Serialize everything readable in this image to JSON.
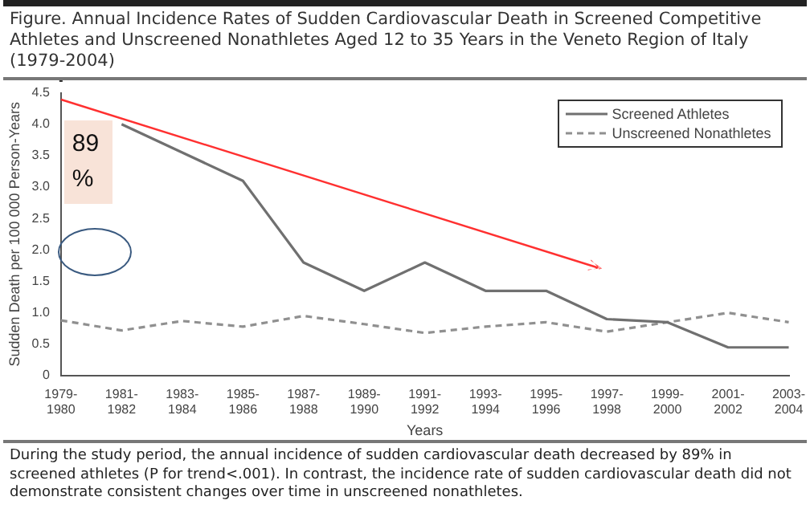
{
  "chart_data": {
    "type": "line",
    "title": "Figure. Annual Incidence Rates of Sudden Cardiovascular Death in Screened Competitive Athletes and Unscreened Nonathletes Aged 12 to 35 Years in the Veneto Region of Italy (1979-2004)",
    "xlabel": "Years",
    "ylabel": "Sudden Death per 100 000 Person-Years",
    "categories": [
      "1979-1980",
      "1981-1982",
      "1983-1984",
      "1985-1986",
      "1987-1988",
      "1989-1990",
      "1991-1992",
      "1993-1994",
      "1995-1996",
      "1997-1998",
      "1999-2000",
      "2001-2002",
      "2003-2004"
    ],
    "series": [
      {
        "name": "Screened Athletes",
        "color": "#707070",
        "line_style": "solid",
        "values": [
          null,
          4.0,
          3.55,
          3.1,
          1.8,
          1.35,
          1.8,
          1.35,
          1.35,
          0.9,
          0.85,
          0.45,
          0.45
        ]
      },
      {
        "name": "Unscreened Nonathletes",
        "color": "#909090",
        "line_style": "dashed",
        "values": [
          0.88,
          0.72,
          0.87,
          0.78,
          0.95,
          0.82,
          0.68,
          0.78,
          0.85,
          0.7,
          0.85,
          1.0,
          0.85
        ]
      }
    ],
    "ylim": [
      0,
      4.5
    ],
    "yticks": [
      0,
      {
        "value": 0.5,
        "label": "0.5"
      },
      {
        "value": 1,
        "label": "1.0"
      },
      {
        "value": 1.5,
        "label": "1.5"
      },
      {
        "value": 2,
        "label": "2.0"
      },
      {
        "value": 2.5,
        "label": "2.5"
      },
      {
        "value": 3,
        "label": "3.0"
      },
      {
        "value": 3.5,
        "label": "3.5"
      },
      {
        "value": 4,
        "label": "4.0"
      },
      {
        "value": 4.5,
        "label": "4.5"
      }
    ],
    "grid": false,
    "legend": "top right",
    "marker": "none",
    "annotations": [
      "During the study period, the annual incidence of sudden cardiovascular death decreased by 89% in screened athletes (P for trend<.001). In contrast, the incidence rate of sudden cardiovascular death did not demonstrate consistent changes over time in unscreened nonathletes.",
      "89 %"
    ]
  }
}
